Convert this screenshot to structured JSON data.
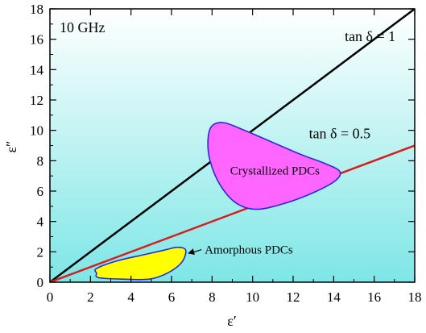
{
  "chart_data": {
    "type": "scatter",
    "title": "",
    "frequency_label": "10 GHz",
    "xlabel": "ε′",
    "ylabel": "ε″",
    "xlim": [
      0,
      18
    ],
    "ylim": [
      0,
      18
    ],
    "x_ticks": [
      0,
      2,
      4,
      6,
      8,
      10,
      12,
      14,
      16,
      18
    ],
    "y_ticks": [
      0,
      2,
      4,
      6,
      8,
      10,
      12,
      14,
      16,
      18
    ],
    "background_gradient": [
      "#ffffff",
      "#7ee6e6"
    ],
    "lines": [
      {
        "name": "tan δ = 1",
        "slope": 1,
        "x": [
          0,
          18
        ],
        "y": [
          0,
          18
        ],
        "color": "#000000"
      },
      {
        "name": "tan δ = 0.5",
        "slope": 0.5,
        "x": [
          0,
          18
        ],
        "y": [
          0,
          9
        ],
        "color": "#d42020"
      }
    ],
    "regions": [
      {
        "name": "Crystallized PDCs",
        "fill": "#ff66ff",
        "stroke": "#2a2ad8",
        "x": [
          8.0,
          8.6,
          9.6,
          11.0,
          12.4,
          13.6,
          14.3,
          14.1,
          13.0,
          11.6,
          10.2,
          9.2,
          8.4,
          7.9,
          7.8
        ],
        "y": [
          10.3,
          10.5,
          10.0,
          9.2,
          8.4,
          7.8,
          7.3,
          6.7,
          5.9,
          5.2,
          4.8,
          5.2,
          6.4,
          8.0,
          9.4
        ]
      },
      {
        "name": "Amorphous PDCs",
        "fill": "#ffff00",
        "stroke": "#2a2ad8",
        "x": [
          2.3,
          3.3,
          4.6,
          5.6,
          6.3,
          6.7,
          6.5,
          5.8,
          4.9,
          3.6,
          2.4,
          2.3
        ],
        "y": [
          0.9,
          1.4,
          1.8,
          2.1,
          2.3,
          2.1,
          1.3,
          0.6,
          0.2,
          0.2,
          0.3,
          0.6
        ]
      }
    ],
    "annotations": [
      {
        "text": "tan δ = 1",
        "x": 15.8,
        "y": 16.2
      },
      {
        "text": "tan δ = 0.5",
        "x": 14.3,
        "y": 9.8
      },
      {
        "text": "Crystallized PDCs",
        "x": 11.1,
        "y": 7.4
      },
      {
        "text": "Amorphous PDCs",
        "x": 10.1,
        "y": 2.2,
        "arrow_to": [
          6.8,
          1.9
        ]
      }
    ],
    "grid": false
  }
}
